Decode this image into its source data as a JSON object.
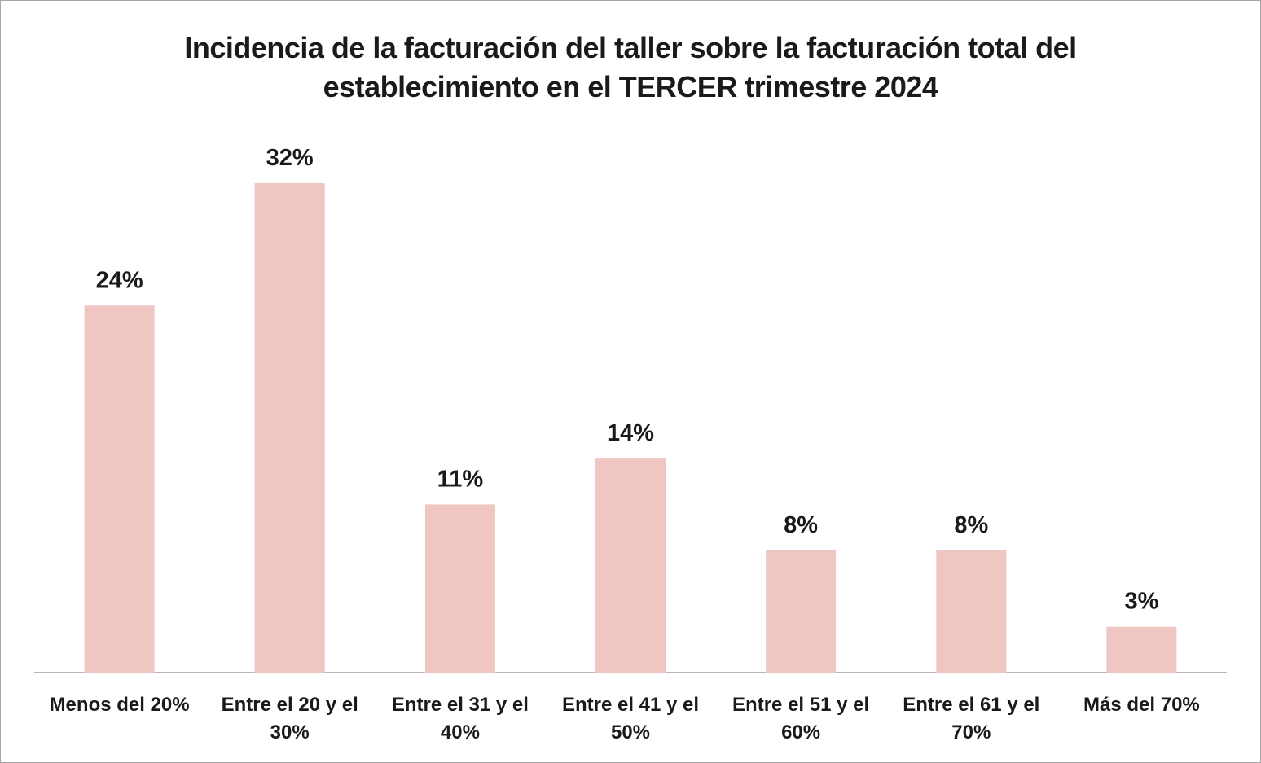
{
  "chart_data": {
    "type": "bar",
    "title": [
      "Incidencia de la facturación del taller sobre la facturación total del",
      "establecimiento en el TERCER trimestre 2024"
    ],
    "categories": [
      [
        "Menos del 20%"
      ],
      [
        "Entre el 20 y el",
        "30%"
      ],
      [
        "Entre el 31 y el",
        "40%"
      ],
      [
        "Entre el 41 y el",
        "50%"
      ],
      [
        "Entre el 51 y el",
        "60%"
      ],
      [
        "Entre el 61 y el",
        "70%"
      ],
      [
        "Más del 70%"
      ]
    ],
    "values": [
      24,
      32,
      11,
      14,
      8,
      8,
      3
    ],
    "data_labels": [
      "24%",
      "32%",
      "11%",
      "14%",
      "8%",
      "8%",
      "3%"
    ],
    "unit": "%",
    "ylim": [
      0,
      34
    ],
    "grid": false,
    "legend": "none",
    "bar_color": "#f0c6c3"
  }
}
